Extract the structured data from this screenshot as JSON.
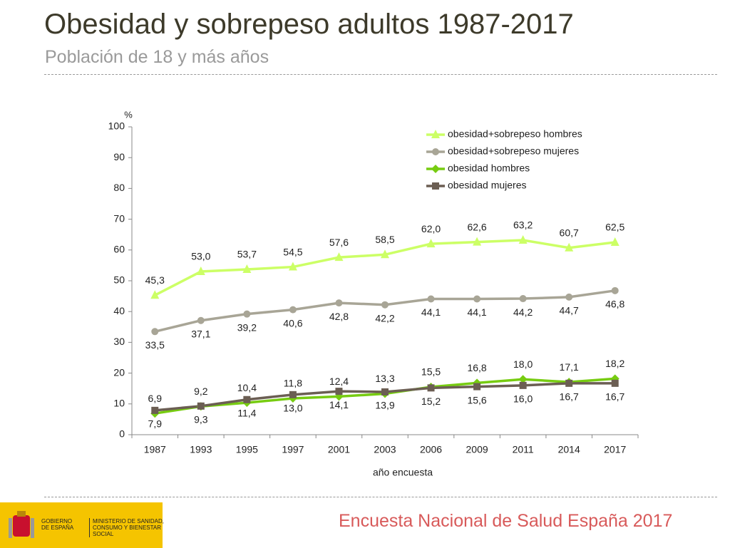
{
  "chart_data": {
    "type": "line",
    "title": "Obesidad y sobrepeso adultos 1987-2017",
    "subtitle": "Población de 18 y más años",
    "y_label": "%",
    "x_label": "año encuesta",
    "categories": [
      "1987",
      "1993",
      "1995",
      "1997",
      "2001",
      "2003",
      "2006",
      "2009",
      "2011",
      "2014",
      "2017"
    ],
    "ylim": [
      0,
      100
    ],
    "yticks": [
      0,
      10,
      20,
      30,
      40,
      50,
      60,
      70,
      80,
      90,
      100
    ],
    "grid": false,
    "legend": "upper right",
    "series": [
      {
        "name": "obesidad+sobrepeso hombres",
        "color": "#ccff66",
        "marker": "triangle",
        "label_side": "above",
        "values": [
          45.3,
          53.0,
          53.7,
          54.5,
          57.6,
          58.5,
          62.0,
          62.6,
          63.2,
          60.7,
          62.5
        ],
        "value_labels": [
          "45,3",
          "53,0",
          "53,7",
          "54,5",
          "57,6",
          "58,5",
          "62,0",
          "62,6",
          "63,2",
          "60,7",
          "62,5"
        ]
      },
      {
        "name": "obesidad+sobrepeso mujeres",
        "color": "#a8a596",
        "marker": "circle",
        "label_side": "below",
        "values": [
          33.5,
          37.1,
          39.2,
          40.6,
          42.8,
          42.2,
          44.1,
          44.1,
          44.2,
          44.7,
          46.8
        ],
        "value_labels": [
          "33,5",
          "37,1",
          "39,2",
          "40,6",
          "42,8",
          "42,2",
          "44,1",
          "44,1",
          "44,2",
          "44,7",
          "46,8"
        ]
      },
      {
        "name": "obesidad hombres",
        "color": "#77cc11",
        "marker": "diamond",
        "label_side": "above",
        "values": [
          6.9,
          9.2,
          10.4,
          11.8,
          12.4,
          13.3,
          15.5,
          16.8,
          18.0,
          17.1,
          18.2
        ],
        "value_labels": [
          "6,9",
          "9,2",
          "10,4",
          "11,8",
          "12,4",
          "13,3",
          "15,5",
          "16,8",
          "18,0",
          "17,1",
          "18,2"
        ]
      },
      {
        "name": "obesidad mujeres",
        "color": "#6b5e53",
        "marker": "square",
        "label_side": "below",
        "values": [
          7.9,
          9.3,
          11.4,
          13.0,
          14.1,
          13.9,
          15.2,
          15.6,
          16.0,
          16.7,
          16.7
        ],
        "value_labels": [
          "7,9",
          "9,3",
          "11,4",
          "13,0",
          "14,1",
          "13,9",
          "15,2",
          "15,6",
          "16,0",
          "16,7",
          "16,7"
        ]
      }
    ]
  },
  "branding": {
    "government": "GOBIERNO DE ESPAÑA",
    "ministry": "MINISTERIO DE SANIDAD, CONSUMO Y BIENESTAR SOCIAL"
  },
  "footer": "Encuesta Nacional de Salud España 2017"
}
